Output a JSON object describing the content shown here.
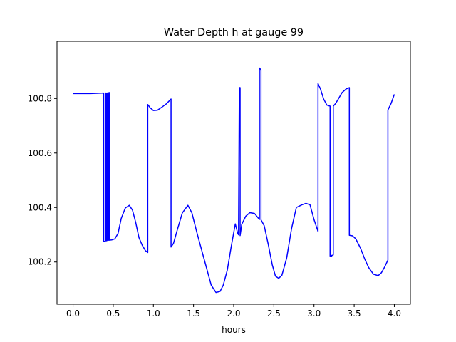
{
  "chart_data": {
    "type": "line",
    "title": "Water Depth h at gauge 99",
    "xlabel": "hours",
    "ylabel": "",
    "xlim": [
      -0.2,
      4.2
    ],
    "ylim": [
      100.045,
      101.01
    ],
    "xticks": [
      0.0,
      0.5,
      1.0,
      1.5,
      2.0,
      2.5,
      3.0,
      3.5,
      4.0
    ],
    "xtick_labels": [
      "0.0",
      "0.5",
      "1.0",
      "1.5",
      "2.0",
      "2.5",
      "3.0",
      "3.5",
      "4.0"
    ],
    "yticks": [
      100.2,
      100.4,
      100.6,
      100.8
    ],
    "ytick_labels": [
      "100.2",
      "100.4",
      "100.6",
      "100.8"
    ],
    "grid": false,
    "legend": "none",
    "series": [
      {
        "color": "#0000ff",
        "x": [
          0.0,
          0.2,
          0.3,
          0.38,
          0.38,
          0.4,
          0.4,
          0.41,
          0.41,
          0.42,
          0.42,
          0.43,
          0.43,
          0.44,
          0.44,
          0.45,
          0.45,
          0.48,
          0.52,
          0.56,
          0.6,
          0.65,
          0.7,
          0.74,
          0.78,
          0.82,
          0.86,
          0.9,
          0.93,
          0.93,
          0.96,
          1.0,
          1.05,
          1.1,
          1.16,
          1.22,
          1.22,
          1.25,
          1.3,
          1.36,
          1.43,
          1.48,
          1.54,
          1.6,
          1.66,
          1.72,
          1.78,
          1.83,
          1.87,
          1.92,
          1.97,
          2.02,
          2.05,
          2.06,
          2.07,
          2.08,
          2.08,
          2.09,
          2.1,
          2.15,
          2.2,
          2.26,
          2.32,
          2.32,
          2.34,
          2.34,
          2.38,
          2.43,
          2.48,
          2.52,
          2.56,
          2.6,
          2.66,
          2.72,
          2.78,
          2.85,
          2.9,
          2.95,
          3.0,
          3.05,
          3.05,
          3.08,
          3.12,
          3.16,
          3.2,
          3.2,
          3.22,
          3.22,
          3.24,
          3.24,
          3.27,
          3.3,
          3.35,
          3.4,
          3.44,
          3.44,
          3.48,
          3.52,
          3.58,
          3.63,
          3.68,
          3.74,
          3.8,
          3.84,
          3.88,
          3.92,
          3.92,
          3.96,
          4.0
        ],
        "y": [
          100.818,
          100.818,
          100.819,
          100.82,
          100.275,
          100.276,
          100.82,
          100.82,
          100.278,
          100.278,
          100.82,
          100.82,
          100.28,
          100.28,
          100.82,
          100.822,
          100.28,
          100.281,
          100.285,
          100.305,
          100.36,
          100.398,
          100.408,
          100.39,
          100.345,
          100.29,
          100.262,
          100.242,
          100.235,
          100.778,
          100.766,
          100.756,
          100.757,
          100.767,
          100.78,
          100.798,
          100.255,
          100.268,
          100.32,
          100.38,
          100.408,
          100.38,
          100.31,
          100.245,
          100.18,
          100.115,
          100.088,
          100.092,
          100.115,
          100.17,
          100.258,
          100.34,
          100.305,
          100.3,
          100.84,
          100.84,
          100.297,
          100.317,
          100.338,
          100.368,
          100.381,
          100.378,
          100.356,
          100.912,
          100.905,
          100.355,
          100.333,
          100.265,
          100.19,
          100.148,
          100.14,
          100.151,
          100.215,
          100.322,
          100.4,
          100.41,
          100.415,
          100.41,
          100.356,
          100.312,
          100.855,
          100.835,
          100.798,
          100.776,
          100.772,
          100.222,
          100.22,
          100.224,
          100.226,
          100.772,
          100.782,
          100.797,
          100.822,
          100.835,
          100.84,
          100.298,
          100.296,
          100.285,
          100.25,
          100.212,
          100.18,
          100.155,
          100.15,
          100.161,
          100.182,
          100.207,
          100.758,
          100.782,
          100.815
        ]
      }
    ]
  }
}
